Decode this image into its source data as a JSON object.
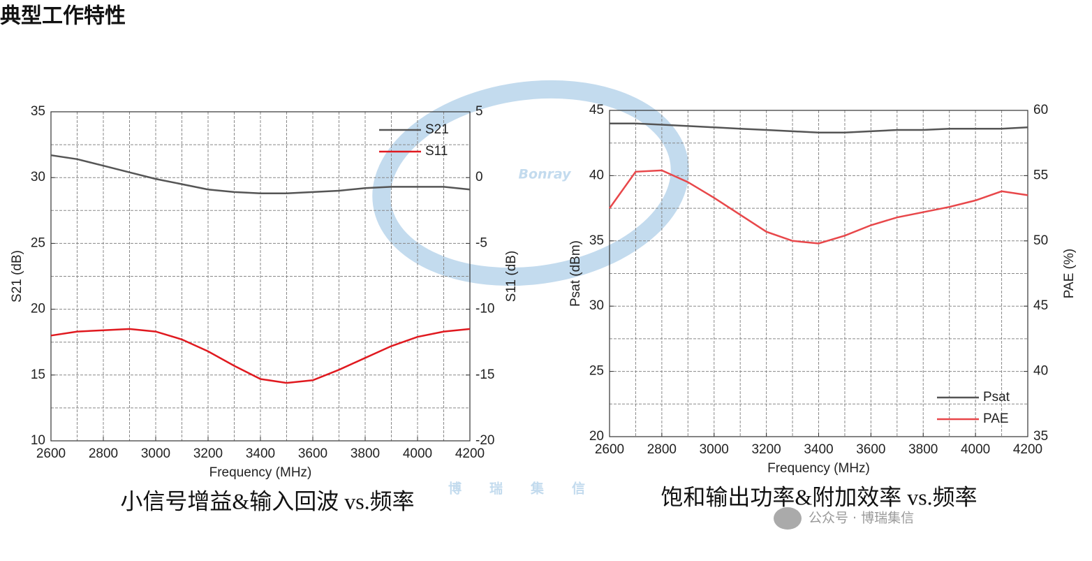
{
  "page_title": "典型工作特性",
  "watermarks": {
    "logo": "Bonray",
    "big": "博瑞集信",
    "account": "公众号 · 博瑞集信"
  },
  "chart_data": [
    {
      "type": "line",
      "caption": "小信号增益&输入回波 vs.频率",
      "x_label": "Frequency (MHz)",
      "y_label": "S21 (dB)",
      "y2_label": "S11 (dB)",
      "x": [
        2600,
        2700,
        2800,
        2900,
        3000,
        3100,
        3200,
        3300,
        3400,
        3500,
        3600,
        3700,
        3800,
        3900,
        4000,
        4100,
        4200
      ],
      "series": [
        {
          "name": "S21",
          "color": "#555555",
          "values": [
            31.7,
            31.4,
            30.9,
            30.4,
            29.9,
            29.5,
            29.1,
            28.9,
            28.8,
            28.8,
            28.9,
            29.0,
            29.2,
            29.3,
            29.3,
            29.3,
            29.1
          ]
        },
        {
          "name": "S11",
          "color": "#e0191f",
          "axis": "y2",
          "values": [
            -12.0,
            -11.7,
            -11.6,
            -11.5,
            -11.7,
            -12.3,
            -13.2,
            -14.3,
            -15.3,
            -15.6,
            -15.4,
            -14.6,
            -13.7,
            -12.8,
            -12.1,
            -11.7,
            -11.5
          ]
        }
      ],
      "xlim": [
        2600,
        4200
      ],
      "xticks": [
        2600,
        2800,
        3000,
        3200,
        3400,
        3600,
        3800,
        4000,
        4200
      ],
      "ylim": [
        10,
        35
      ],
      "yticks": [
        10,
        15,
        20,
        25,
        30,
        35
      ],
      "y2lim": [
        -20,
        5
      ],
      "y2ticks": [
        -20,
        -15,
        -10,
        -5,
        0,
        5
      ],
      "grid": true,
      "legend": "upper right"
    },
    {
      "type": "line",
      "caption": "饱和输出功率&附加效率 vs.频率",
      "x_label": "Frequency (MHz)",
      "y_label": "Psat (dBm)",
      "y2_label": "PAE (%)",
      "x": [
        2600,
        2700,
        2800,
        2900,
        3000,
        3100,
        3200,
        3300,
        3400,
        3500,
        3600,
        3700,
        3800,
        3900,
        4000,
        4100,
        4200
      ],
      "series": [
        {
          "name": "Psat",
          "color": "#555555",
          "values": [
            44.0,
            44.0,
            43.9,
            43.8,
            43.7,
            43.6,
            43.5,
            43.4,
            43.3,
            43.3,
            43.4,
            43.5,
            43.5,
            43.6,
            43.6,
            43.6,
            43.7
          ]
        },
        {
          "name": "PAE",
          "color": "#e8474a",
          "axis": "y2",
          "values": [
            52.5,
            55.3,
            55.4,
            54.5,
            53.3,
            52.0,
            50.7,
            50.0,
            49.8,
            50.4,
            51.2,
            51.8,
            52.2,
            52.6,
            53.1,
            53.8,
            53.5
          ]
        }
      ],
      "xlim": [
        2600,
        4200
      ],
      "xticks": [
        2600,
        2800,
        3000,
        3200,
        3400,
        3600,
        3800,
        4000,
        4200
      ],
      "ylim": [
        20,
        45
      ],
      "yticks": [
        20,
        25,
        30,
        35,
        40,
        45
      ],
      "y2lim": [
        35,
        60
      ],
      "y2ticks": [
        35,
        40,
        45,
        50,
        55,
        60
      ],
      "grid": true,
      "legend": "lower right"
    }
  ]
}
